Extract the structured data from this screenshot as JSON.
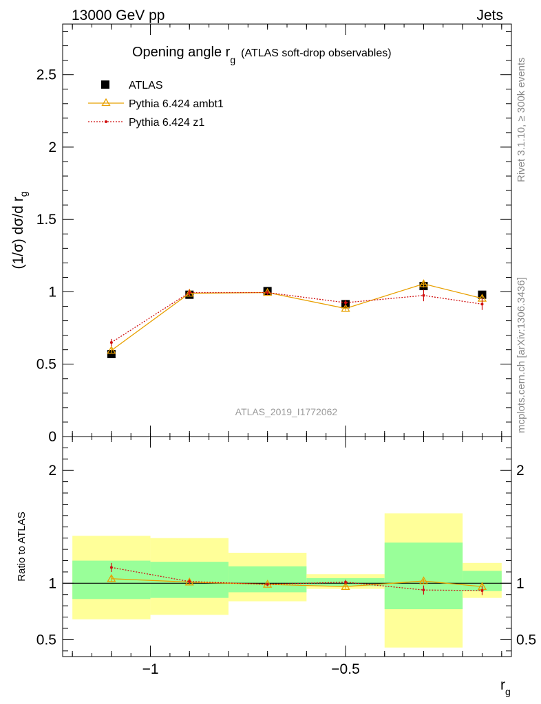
{
  "header": {
    "left": "13000 GeV pp",
    "right": "Jets"
  },
  "title": {
    "main": "Opening angle r",
    "main_sub": "g",
    "paren": "(ATLAS soft-drop observables)"
  },
  "ylabel_main": {
    "text": "(1/σ) dσ/d r",
    "sub": "g"
  },
  "ylabel_ratio": "Ratio to ATLAS",
  "xlabel": {
    "text": "r",
    "sub": "g"
  },
  "side": {
    "rivet": "Rivet 3.1.10, ≥ 300k events",
    "mcplots": "mcplots.cern.ch [arXiv:1306.3436]"
  },
  "analysis_id": "ATLAS_2019_I1772062",
  "legend": [
    {
      "label": "ATLAS",
      "key": "data"
    },
    {
      "label": "Pythia 6.424 ambt1",
      "key": "ambt1"
    },
    {
      "label": "Pythia 6.424 z1",
      "key": "z1"
    }
  ],
  "colors": {
    "data": "#000000",
    "ambt1": "#e8a000",
    "z1": "#d01010",
    "band_inner": "#99ff99",
    "band_outer": "#ffff99",
    "side_text": "#888888"
  },
  "chart_data": {
    "type": "line",
    "xlim": [
      -1.225,
      -0.075
    ],
    "main_ylim": [
      0,
      2.85
    ],
    "ratio_ylim": [
      0.35,
      2.3
    ],
    "x_ticks": [
      {
        "value": -1,
        "label": "−1"
      },
      {
        "value": -0.5,
        "label": "−0.5"
      }
    ],
    "main_y_ticks": [
      {
        "value": 0,
        "label": "0"
      },
      {
        "value": 0.5,
        "label": "0.5"
      },
      {
        "value": 1,
        "label": "1"
      },
      {
        "value": 1.5,
        "label": "1.5"
      },
      {
        "value": 2,
        "label": "2"
      },
      {
        "value": 2.5,
        "label": "2.5"
      }
    ],
    "ratio_y_ticks": [
      {
        "value": 0.5,
        "label": "0.5"
      },
      {
        "value": 1,
        "label": "1"
      },
      {
        "value": 2,
        "label": "2"
      }
    ],
    "bins": [
      {
        "lo": -1.2,
        "hi": -1.0
      },
      {
        "lo": -1.0,
        "hi": -0.8
      },
      {
        "lo": -0.8,
        "hi": -0.6
      },
      {
        "lo": -0.6,
        "hi": -0.4
      },
      {
        "lo": -0.4,
        "hi": -0.2
      },
      {
        "lo": -0.2,
        "hi": -0.1
      }
    ],
    "x": [
      -1.1,
      -0.9,
      -0.7,
      -0.5,
      -0.3,
      -0.15
    ],
    "series": [
      {
        "name": "ATLAS",
        "key": "data",
        "values": [
          0.57,
          0.98,
          1.005,
          0.915,
          1.04,
          0.98
        ],
        "ratio_inner": [
          [
            0.86,
            1.2
          ],
          [
            0.87,
            1.19
          ],
          [
            0.92,
            1.15
          ],
          [
            0.975,
            1.045
          ],
          [
            0.77,
            1.36
          ],
          [
            0.93,
            1.11
          ]
        ],
        "ratio_outer": [
          [
            0.68,
            1.42
          ],
          [
            0.72,
            1.4
          ],
          [
            0.84,
            1.27
          ],
          [
            0.95,
            1.08
          ],
          [
            0.43,
            1.62
          ],
          [
            0.87,
            1.18
          ]
        ]
      },
      {
        "name": "Pythia 6.424 ambt1",
        "key": "ambt1",
        "values": [
          0.595,
          0.99,
          0.995,
          0.885,
          1.055,
          0.955
        ],
        "errors": [
          0.02,
          0.02,
          0.015,
          0.015,
          0.025,
          0.02
        ],
        "ratio": [
          1.04,
          1.01,
          0.99,
          0.97,
          1.02,
          0.97
        ],
        "ratio_errors": [
          0.03,
          0.02,
          0.015,
          0.02,
          0.02,
          0.025
        ]
      },
      {
        "name": "Pythia 6.424 z1",
        "key": "z1",
        "values": [
          0.65,
          0.995,
          0.995,
          0.925,
          0.975,
          0.915
        ],
        "errors": [
          0.025,
          0.02,
          0.015,
          0.02,
          0.04,
          0.04
        ],
        "ratio": [
          1.14,
          1.015,
          0.99,
          1.01,
          0.94,
          0.935
        ],
        "ratio_errors": [
          0.04,
          0.02,
          0.015,
          0.02,
          0.04,
          0.04
        ]
      }
    ]
  }
}
